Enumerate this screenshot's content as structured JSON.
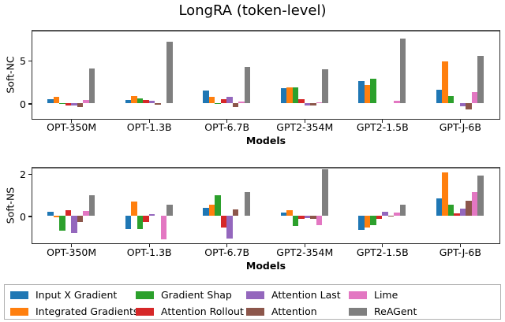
{
  "figure": {
    "title": "LongRA (token-level)"
  },
  "legend": {
    "items": [
      {
        "name": "Input X Gradient",
        "color": "#1f77b4"
      },
      {
        "name": "Integrated Gradients",
        "color": "#ff7f0e"
      },
      {
        "name": "Gradient Shap",
        "color": "#2ca02c"
      },
      {
        "name": "Attention Rollout",
        "color": "#d62728"
      },
      {
        "name": "Attention Last",
        "color": "#9467bd"
      },
      {
        "name": "Attention",
        "color": "#8c564b"
      },
      {
        "name": "Lime",
        "color": "#e377c2"
      },
      {
        "name": "ReAGent",
        "color": "#7f7f7f"
      }
    ]
  },
  "chart_data": [
    {
      "type": "bar",
      "title": "LongRA (token-level)",
      "ylabel": "Soft-NC",
      "xlabel": "Models",
      "categories": [
        "OPT-350M",
        "OPT-1.3B",
        "OPT-6.7B",
        "GPT2-354M",
        "GPT2-1.5B",
        "GPT-J-6B"
      ],
      "yticks": [
        5,
        0
      ],
      "ylim": [
        -1.7,
        8.4
      ],
      "grid": false,
      "series": [
        {
          "name": "Input X Gradient",
          "color": "#1f77b4",
          "values": [
            0.5,
            0.42,
            1.55,
            1.76,
            2.6,
            1.6
          ]
        },
        {
          "name": "Integrated Gradients",
          "color": "#ff7f0e",
          "values": [
            0.8,
            0.85,
            0.75,
            1.9,
            2.2,
            4.9
          ]
        },
        {
          "name": "Gradient Shap",
          "color": "#2ca02c",
          "values": [
            0.06,
            0.6,
            0.06,
            1.85,
            2.9,
            0.85
          ]
        },
        {
          "name": "Attention Rollout",
          "color": "#d62728",
          "values": [
            -0.2,
            0.42,
            0.52,
            0.47,
            0,
            0
          ]
        },
        {
          "name": "Attention Last",
          "color": "#9467bd",
          "values": [
            -0.26,
            0.3,
            0.8,
            -0.22,
            0,
            -0.3
          ]
        },
        {
          "name": "Attention",
          "color": "#8c564b",
          "values": [
            -0.4,
            -0.12,
            -0.45,
            -0.2,
            0,
            -0.65
          ]
        },
        {
          "name": "Lime",
          "color": "#e377c2",
          "values": [
            0.45,
            0,
            0.2,
            0.15,
            0.3,
            1.3
          ]
        },
        {
          "name": "ReAGent",
          "color": "#7f7f7f",
          "values": [
            4.1,
            7.2,
            4.25,
            4.0,
            7.6,
            5.55
          ]
        }
      ]
    },
    {
      "type": "bar",
      "title": "",
      "ylabel": "Soft-NS",
      "xlabel": "Models",
      "categories": [
        "OPT-350M",
        "OPT-1.3B",
        "OPT-6.7B",
        "GPT2-354M",
        "GPT2-1.5B",
        "GPT-J-6B"
      ],
      "yticks": [
        2,
        0
      ],
      "ylim": [
        -1.25,
        2.25
      ],
      "grid": false,
      "series": [
        {
          "name": "Input X Gradient",
          "color": "#1f77b4",
          "values": [
            0.2,
            -0.6,
            0.37,
            0.18,
            -0.64,
            0.85
          ]
        },
        {
          "name": "Integrated Gradients",
          "color": "#ff7f0e",
          "values": [
            -0.07,
            0.7,
            0.55,
            0.29,
            -0.55,
            2.05
          ]
        },
        {
          "name": "Gradient Shap",
          "color": "#2ca02c",
          "values": [
            -0.7,
            -0.6,
            1.0,
            -0.45,
            -0.42,
            0.55
          ]
        },
        {
          "name": "Attention Rollout",
          "color": "#d62728",
          "values": [
            0.28,
            -0.28,
            -0.55,
            -0.12,
            -0.12,
            0.14
          ]
        },
        {
          "name": "Attention Last",
          "color": "#9467bd",
          "values": [
            -0.8,
            0.08,
            -1.05,
            -0.1,
            0.2,
            0.35
          ]
        },
        {
          "name": "Attention",
          "color": "#8c564b",
          "values": [
            -0.27,
            0,
            0.33,
            -0.15,
            -0.04,
            0.73
          ]
        },
        {
          "name": "Lime",
          "color": "#e377c2",
          "values": [
            0.23,
            -1.1,
            0,
            -0.42,
            0.18,
            1.15
          ]
        },
        {
          "name": "ReAGent",
          "color": "#7f7f7f",
          "values": [
            1.0,
            0.55,
            1.15,
            2.2,
            0.55,
            1.9
          ]
        }
      ]
    }
  ]
}
